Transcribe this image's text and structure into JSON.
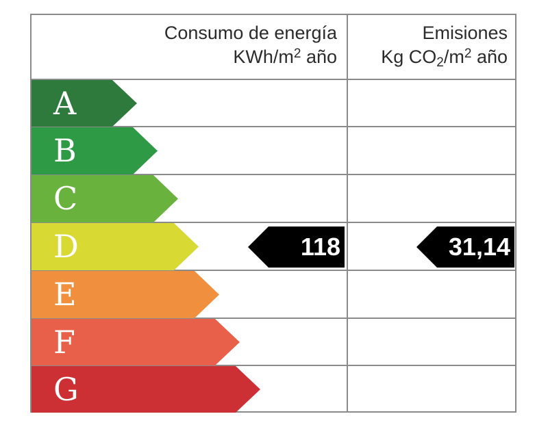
{
  "header": {
    "energy": {
      "line1": "Consumo de energía",
      "unit_prefix": "KWh/m",
      "unit_sup": "2",
      "unit_suffix": " año"
    },
    "emissions": {
      "line1": "Emisiones",
      "unit_prefix": "Kg CO",
      "unit_sub": "2",
      "unit_mid": "/m",
      "unit_sup": "2",
      "unit_suffix": " año"
    }
  },
  "ratings": [
    {
      "letter": "A",
      "color": "#2e7a3c"
    },
    {
      "letter": "B",
      "color": "#2e9a45"
    },
    {
      "letter": "C",
      "color": "#6ab23e"
    },
    {
      "letter": "D",
      "color": "#d8d933"
    },
    {
      "letter": "E",
      "color": "#f08f3e"
    },
    {
      "letter": "F",
      "color": "#e8604a"
    },
    {
      "letter": "G",
      "color": "#cc3034"
    }
  ],
  "current": {
    "rating": "D",
    "energy_value": "118",
    "emissions_value": "31,14",
    "tag_color": "#000000"
  },
  "chart_data": {
    "type": "table",
    "title": "Energy efficiency certificate",
    "columns": [
      "Consumo de energía KWh/m² año",
      "Emisiones Kg CO₂/m² año"
    ],
    "categories": [
      "A",
      "B",
      "C",
      "D",
      "E",
      "F",
      "G"
    ],
    "category_colors": [
      "#2e7a3c",
      "#2e9a45",
      "#6ab23e",
      "#d8d933",
      "#f08f3e",
      "#e8604a",
      "#cc3034"
    ],
    "series": [
      {
        "name": "Consumo de energía (KWh/m² año)",
        "rating": "D",
        "value": 118
      },
      {
        "name": "Emisiones (Kg CO₂/m² año)",
        "rating": "D",
        "value": 31.14
      }
    ]
  }
}
